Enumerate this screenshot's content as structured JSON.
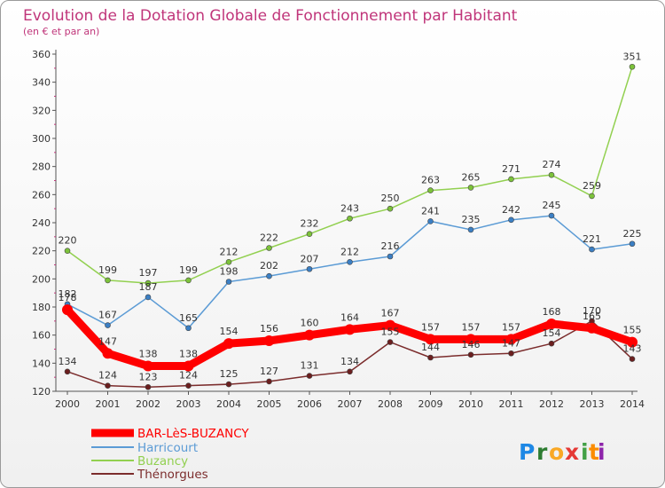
{
  "chart_data": {
    "type": "line",
    "title": "Evolution de la Dotation Globale de Fonctionnement par Habitant",
    "subtitle": "(en € et par an)",
    "xlabel": "",
    "ylabel": "",
    "ylim": [
      120,
      360
    ],
    "y_ticks": [
      120,
      140,
      160,
      180,
      200,
      220,
      240,
      260,
      280,
      300,
      320,
      340,
      360
    ],
    "categories": [
      "2000",
      "2001",
      "2002",
      "2003",
      "2004",
      "2005",
      "2006",
      "2007",
      "2008",
      "2009",
      "2010",
      "2011",
      "2012",
      "2013",
      "2014"
    ],
    "series": [
      {
        "name": "BAR-LèS-BUZANCY",
        "color": "#ff0000",
        "marker": "#ff0000",
        "values": [
          178,
          147,
          138,
          138,
          154,
          156,
          160,
          164,
          167,
          157,
          157,
          157,
          168,
          165,
          155
        ]
      },
      {
        "name": "Harricourt",
        "color": "#5b9bd5",
        "marker": "#3b7fc4",
        "values": [
          182,
          167,
          187,
          165,
          198,
          202,
          207,
          212,
          216,
          241,
          235,
          242,
          245,
          221,
          225
        ]
      },
      {
        "name": "Buzancy",
        "color": "#92d050",
        "marker": "#7cc23a",
        "values": [
          220,
          199,
          197,
          199,
          212,
          222,
          232,
          243,
          250,
          263,
          265,
          271,
          274,
          259,
          351
        ]
      },
      {
        "name": "Thénorgues",
        "color": "#7b2c2c",
        "marker": "#6b1f1f",
        "values": [
          134,
          124,
          123,
          124,
          125,
          127,
          131,
          134,
          155,
          144,
          146,
          147,
          154,
          170,
          143
        ]
      }
    ],
    "legend_position": "bottom-left",
    "grid": false
  },
  "logo": {
    "letters": [
      "P",
      "r",
      "o",
      "x",
      "i",
      "t",
      "i"
    ],
    "colors": [
      "#1e88e5",
      "#2e7d32",
      "#f9a825",
      "#e53935",
      "#43a047",
      "#fb8c00",
      "#8e24aa"
    ]
  }
}
